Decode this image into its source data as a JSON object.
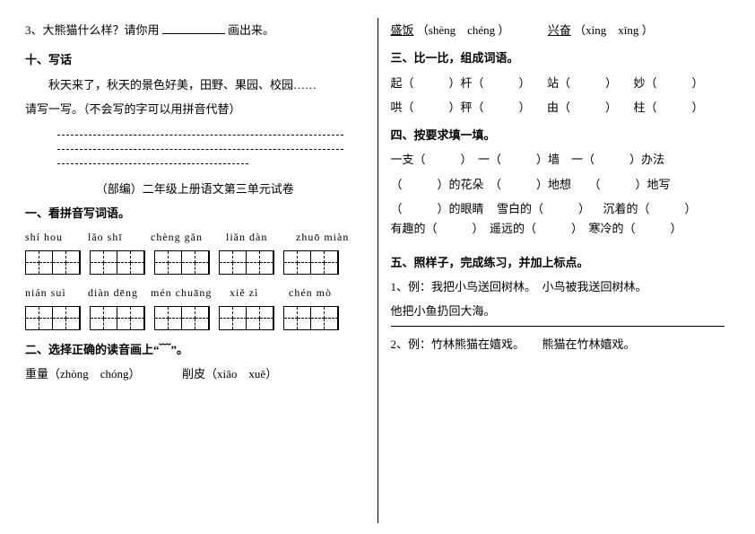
{
  "left": {
    "q3": "3、大熊猫什么样？请你用 ",
    "q3_tail": " 画出来。",
    "h10": "十、写话",
    "p10a": "秋天来了，秋天的景色好美，田野、果园、校园……",
    "p10b": "请写一写。（不会写的字可以用拼音代替）",
    "title": "（部编）二年级上册语文第三单元试卷",
    "h11": "一、看拼音写词语。",
    "pinyin1": [
      "shí hou",
      "lǎo shī",
      "chèng gǎn",
      "liǎn dàn",
      "zhuō miàn"
    ],
    "pinyin2": [
      "nián suì",
      "diàn dēng",
      "mén chuāng",
      "xiě zì",
      "chén mò"
    ],
    "h12": "二、选择正确的读音画上“﹋”。",
    "l12a_a": "重量（zhòng　chóng）",
    "l12a_b": "削皮（xiāo　xuē）"
  },
  "right": {
    "l0a_w1": "盛饭",
    "l0a_p1": "（shèng　chéng ）",
    "l0b_w1": "兴奋",
    "l0b_p1": "（xìng　xīng ）",
    "h3": "三、比一比，组成词语。",
    "r3a": [
      "起（　　　）杆（　　　）",
      "站（　　　）",
      "妙（　　　）"
    ],
    "r3b": [
      "哄（　　　）秤（　　　）",
      "由（　　　）",
      "柱（　　　）"
    ],
    "h4": "四、按要求填一填。",
    "r4a": "一支（　　　）　一（　　　）墙　一（　　　）办法",
    "r4b": "（　　　）的花朵　（　　　）地想　　（　　　）地写",
    "r4c_a": "（　　　）的眼睛",
    "r4c_b": "雪白的（　　　）",
    "r4c_c": "沉着的（　　　）",
    "r4d": "有趣的（　　　）　遥远的（　　　）　寒冷的（　　　）",
    "h5": "五、照样子，完成练习，并加上标点。",
    "r5a": "1、例：我把小鸟送回树林。　小鸟被我送回树林。",
    "r5b": "他把小鱼扔回大海。",
    "r5c": "2、例：竹林熊猫在嬉戏。　　熊猫在竹林嬉戏。"
  }
}
